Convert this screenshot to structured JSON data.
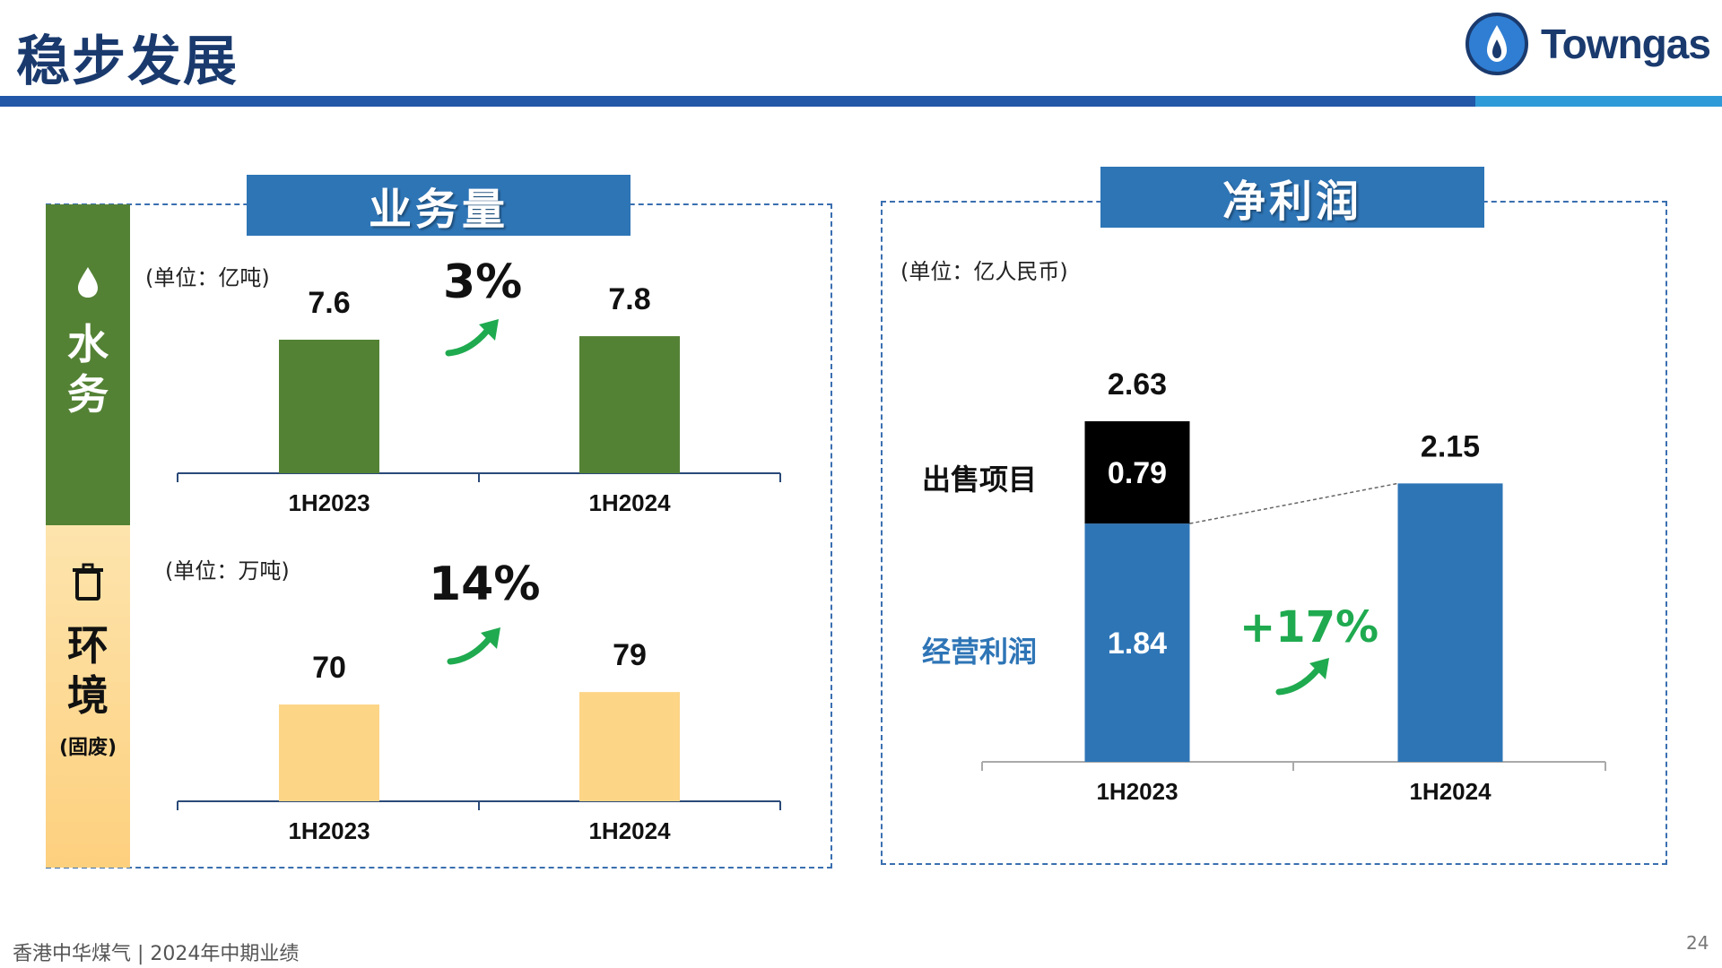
{
  "header": {
    "title": "稳步发展",
    "logo_text": "Towngas"
  },
  "colors": {
    "navy": "#1a3a6e",
    "blue": "#2e75b6",
    "green": "#548235",
    "yellow": "#fdd587",
    "black": "#000000",
    "growth_green": "#1faa4f"
  },
  "icons": {
    "water": "water-drop-icon",
    "waste": "trash-bin-icon",
    "logo": "flame-icon",
    "growth": "up-arrow-icon"
  },
  "left_panel": {
    "title": "业务量",
    "water": {
      "side_label_1": "水",
      "side_label_2": "务",
      "unit": "(单位：亿吨)",
      "growth": "3%"
    },
    "environment": {
      "side_label_1": "环",
      "side_label_2": "境",
      "side_sub": "(固废)",
      "unit": "(单位：万吨)",
      "growth": "14%"
    }
  },
  "right_panel": {
    "title": "净利润",
    "unit": "(单位：亿人民币)",
    "label_sale": "出售项目",
    "label_operating": "经营利润",
    "growth": "+17%"
  },
  "chart_data": [
    {
      "type": "bar",
      "categories": [
        "1H2023",
        "1H2024"
      ],
      "values": [
        7.6,
        7.8
      ],
      "data_labels": [
        "7.6",
        "7.8"
      ],
      "color": "#548235"
    },
    {
      "type": "bar",
      "categories": [
        "1H2023",
        "1H2024"
      ],
      "values": [
        70,
        79
      ],
      "data_labels": [
        "70",
        "79"
      ],
      "color": "#fdd587"
    },
    {
      "type": "bar",
      "stacked": true,
      "categories": [
        "1H2023",
        "1H2024"
      ],
      "series": [
        {
          "name": "经营利润",
          "values": [
            1.84,
            2.15
          ],
          "data_labels": [
            "1.84",
            ""
          ],
          "color": "#2e75b6"
        },
        {
          "name": "出售项目",
          "values": [
            0.79,
            0
          ],
          "data_labels": [
            "0.79",
            ""
          ],
          "color": "#000000"
        }
      ],
      "totals": [
        2.63,
        2.15
      ],
      "total_labels": [
        "2.63",
        "2.15"
      ]
    }
  ],
  "footer": {
    "text": "香港中华煤气 | 2024年中期业绩",
    "page": "24"
  }
}
